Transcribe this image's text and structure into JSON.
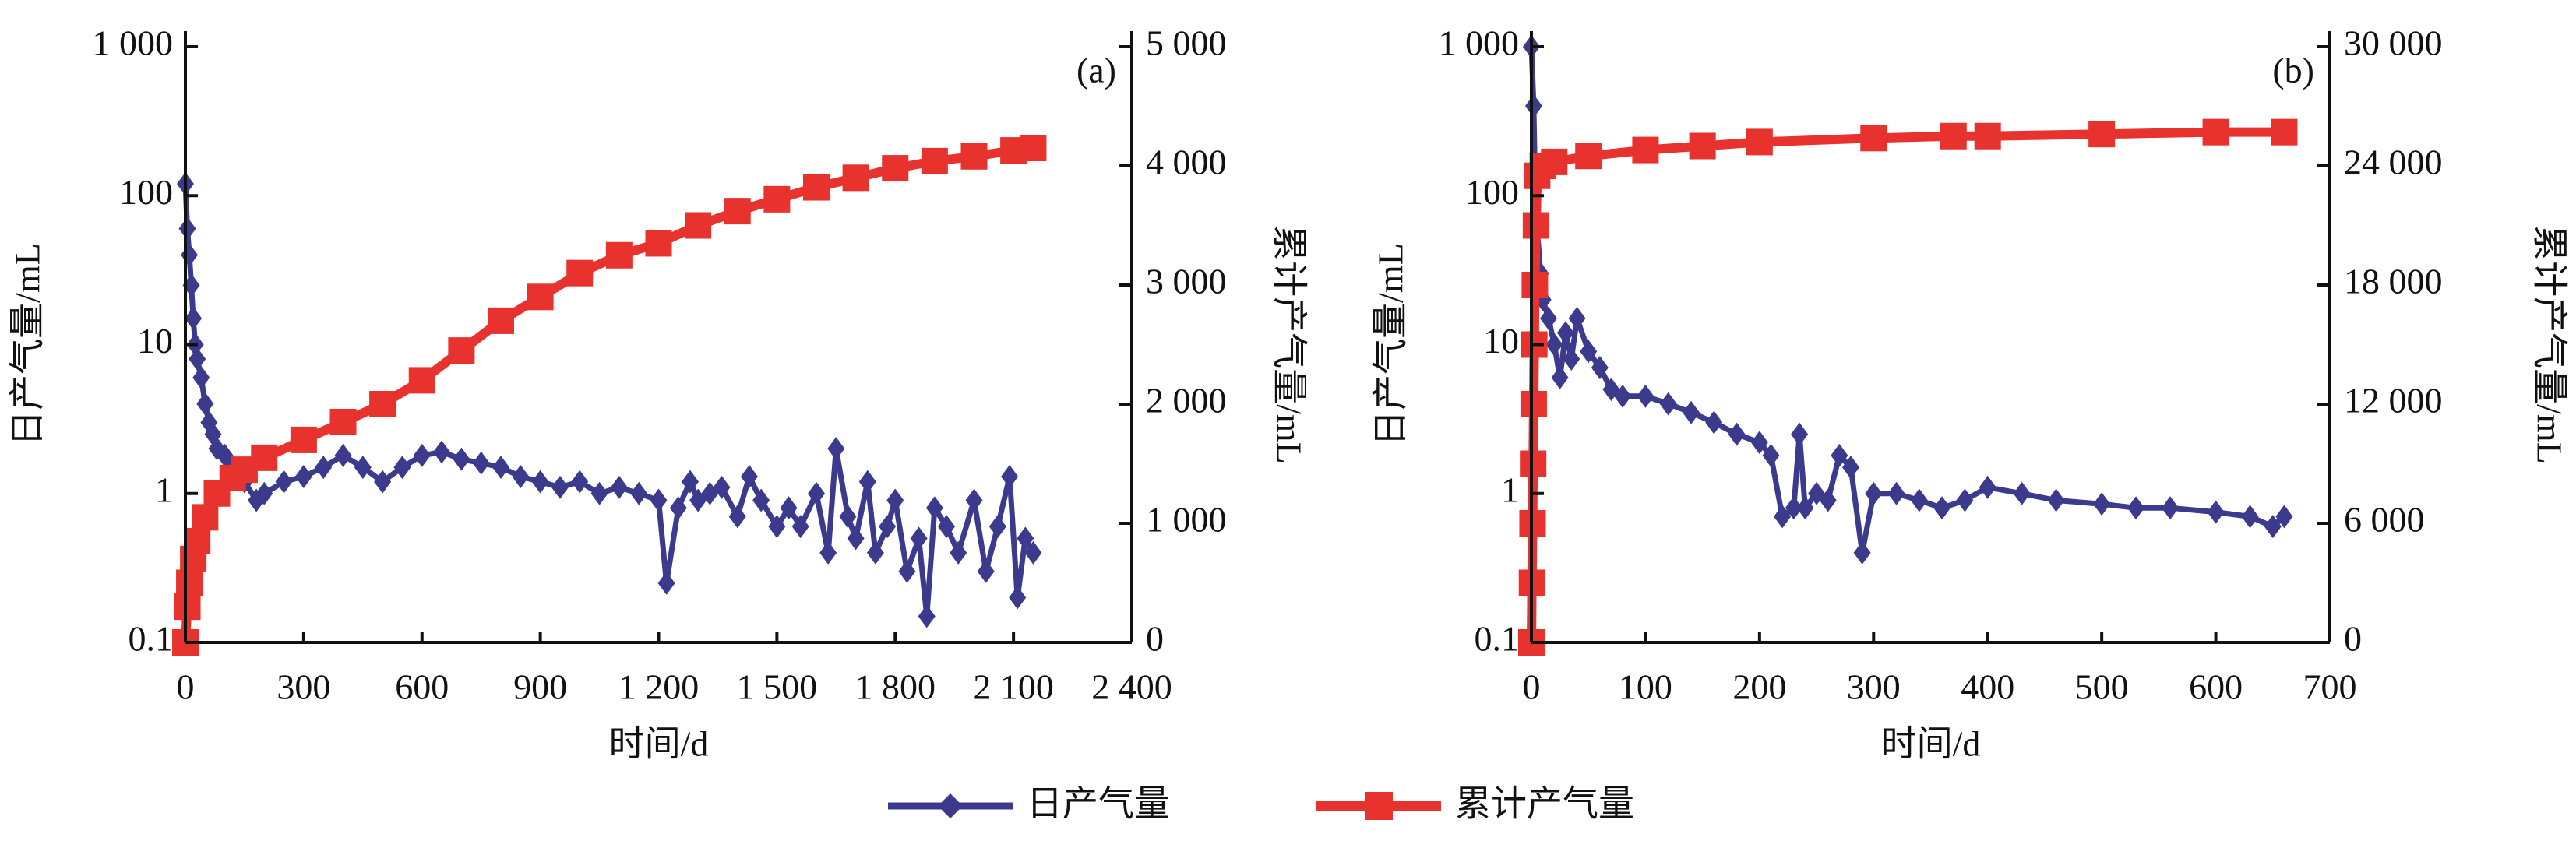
{
  "chart_data": [
    {
      "type": "line",
      "label": "(a)",
      "xlabel": "时间/d",
      "ylabel": "日产气量/mL",
      "y2label": "累计产气量/mL",
      "xlim": [
        0,
        2400
      ],
      "xticks": [
        0,
        300,
        600,
        900,
        {
          "value": 1200,
          "label": "1 200"
        },
        {
          "value": 1500,
          "label": "1 500"
        },
        {
          "value": 1800,
          "label": "1 800"
        },
        {
          "value": 2100,
          "label": "2 100"
        },
        {
          "value": 2400,
          "label": "2 400"
        }
      ],
      "yscale": "log",
      "ylim": [
        0.1,
        1000
      ],
      "yticks": [
        0.1,
        1,
        10,
        100,
        {
          "value": 1000,
          "label": "1 000"
        }
      ],
      "y2lim": [
        0,
        5000
      ],
      "y2ticks": [
        0,
        {
          "value": 1000,
          "label": "1 000"
        },
        {
          "value": 2000,
          "label": "2 000"
        },
        {
          "value": 3000,
          "label": "3 000"
        },
        {
          "value": 4000,
          "label": "4 000"
        },
        {
          "value": 5000,
          "label": "5 000"
        }
      ],
      "series": [
        {
          "name": "日产气量",
          "color": "#3b3a8c",
          "marker": "diamond",
          "x": [
            0,
            5,
            10,
            15,
            20,
            25,
            30,
            40,
            50,
            60,
            70,
            80,
            100,
            120,
            150,
            180,
            200,
            250,
            300,
            350,
            400,
            450,
            500,
            550,
            600,
            650,
            700,
            750,
            800,
            850,
            900,
            950,
            1000,
            1050,
            1100,
            1150,
            1200,
            1220,
            1250,
            1280,
            1300,
            1330,
            1360,
            1400,
            1430,
            1460,
            1500,
            1530,
            1560,
            1600,
            1630,
            1650,
            1680,
            1700,
            1730,
            1750,
            1780,
            1800,
            1830,
            1860,
            1880,
            1900,
            1930,
            1960,
            2000,
            2030,
            2060,
            2090,
            2110,
            2130,
            2150
          ],
          "values": [
            120,
            60,
            40,
            25,
            15,
            10,
            8,
            6,
            4,
            3,
            2.5,
            2,
            1.8,
            1.5,
            1.2,
            0.9,
            1,
            1.2,
            1.3,
            1.5,
            1.8,
            1.5,
            1.2,
            1.5,
            1.8,
            1.9,
            1.7,
            1.6,
            1.5,
            1.3,
            1.2,
            1.1,
            1.2,
            1.0,
            1.1,
            1.0,
            0.9,
            0.25,
            0.8,
            1.2,
            0.9,
            1.0,
            1.1,
            0.7,
            1.3,
            0.9,
            0.6,
            0.8,
            0.6,
            1.0,
            0.4,
            2.0,
            0.7,
            0.5,
            1.2,
            0.4,
            0.6,
            0.9,
            0.3,
            0.5,
            0.15,
            0.8,
            0.6,
            0.4,
            0.9,
            0.3,
            0.6,
            1.3,
            0.2,
            0.5,
            0.4
          ]
        },
        {
          "name": "累计产气量",
          "color": "#e8322e",
          "marker": "square",
          "axis": "y2",
          "x": [
            0,
            5,
            10,
            20,
            30,
            50,
            80,
            120,
            150,
            200,
            300,
            400,
            500,
            600,
            700,
            800,
            900,
            1000,
            1100,
            1200,
            1300,
            1400,
            1500,
            1600,
            1700,
            1800,
            1900,
            2000,
            2100,
            2150
          ],
          "values": [
            0,
            300,
            500,
            700,
            850,
            1050,
            1250,
            1380,
            1450,
            1550,
            1700,
            1850,
            2000,
            2200,
            2450,
            2700,
            2900,
            3100,
            3250,
            3350,
            3500,
            3620,
            3720,
            3820,
            3900,
            3980,
            4040,
            4080,
            4130,
            4150
          ]
        }
      ]
    },
    {
      "type": "line",
      "label": "(b)",
      "xlabel": "时间/d",
      "ylabel": "日产气量/mL",
      "y2label": "累计产气量/mL",
      "xlim": [
        0,
        700
      ],
      "xticks": [
        0,
        100,
        200,
        300,
        400,
        500,
        600,
        700
      ],
      "yscale": "log",
      "ylim": [
        0.1,
        1000
      ],
      "yticks": [
        0.1,
        1,
        10,
        100,
        {
          "value": 1000,
          "label": "1 000"
        }
      ],
      "y2lim": [
        0,
        30000
      ],
      "y2ticks": [
        0,
        {
          "value": 6000,
          "label": "6 000"
        },
        {
          "value": 12000,
          "label": "12 000"
        },
        {
          "value": 18000,
          "label": "18 000"
        },
        {
          "value": 24000,
          "label": "24 000"
        },
        {
          "value": 30000,
          "label": "30 000"
        }
      ],
      "series": [
        {
          "color": "#3b3a8c",
          "marker": "diamond",
          "x": [
            0,
            2,
            3,
            5,
            8,
            10,
            15,
            20,
            25,
            30,
            35,
            40,
            50,
            60,
            70,
            80,
            100,
            120,
            140,
            160,
            180,
            200,
            210,
            220,
            230,
            235,
            240,
            250,
            260,
            270,
            280,
            290,
            300,
            320,
            340,
            360,
            380,
            400,
            430,
            460,
            500,
            530,
            560,
            600,
            630,
            650,
            660
          ],
          "values": [
            1000,
            400,
            150,
            60,
            30,
            20,
            15,
            10,
            6,
            12,
            8,
            15,
            9,
            7,
            5,
            4.5,
            4.5,
            4,
            3.5,
            3,
            2.5,
            2.2,
            1.8,
            0.7,
            0.8,
            2.5,
            0.8,
            1,
            0.9,
            1.8,
            1.5,
            0.4,
            1,
            1,
            0.9,
            0.8,
            0.9,
            1.1,
            1,
            0.9,
            0.85,
            0.8,
            0.8,
            0.75,
            0.7,
            0.6,
            0.7
          ]
        },
        {
          "color": "#e8322e",
          "marker": "square",
          "axis": "y2",
          "x": [
            0,
            0.5,
            1,
            1.5,
            2,
            2.5,
            3,
            4,
            5,
            10,
            20,
            50,
            100,
            150,
            200,
            300,
            370,
            400,
            500,
            600,
            660
          ],
          "values": [
            0,
            3000,
            6000,
            9000,
            12000,
            15000,
            18000,
            21000,
            23500,
            24000,
            24200,
            24500,
            24800,
            25000,
            25200,
            25400,
            25500,
            25500,
            25600,
            25700,
            25700
          ]
        }
      ]
    }
  ]
}
